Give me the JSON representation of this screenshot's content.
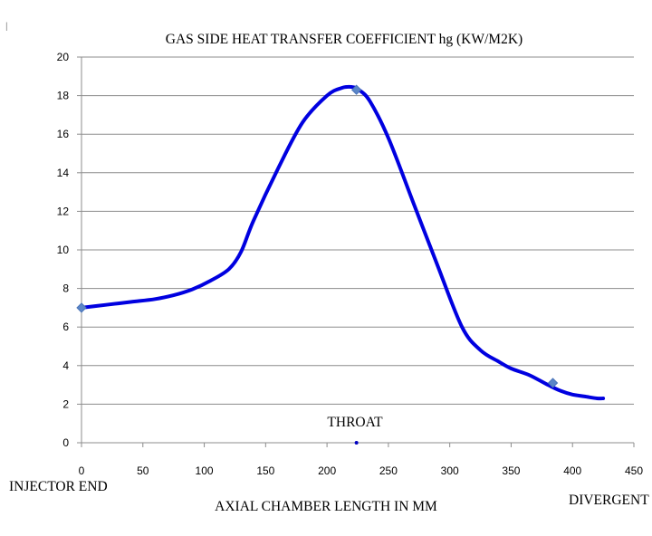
{
  "chart_data": {
    "type": "line",
    "title": "GAS SIDE HEAT TRANSFER COEFFICIENT hg (KW/M2K)",
    "xlabel": "AXIAL CHAMBER LENGTH IN MM",
    "ylabel": "",
    "xlim": [
      0,
      450
    ],
    "ylim": [
      0,
      20
    ],
    "x_ticks": [
      "0",
      "50",
      "100",
      "150",
      "200",
      "250",
      "300",
      "350",
      "400",
      "450"
    ],
    "y_ticks": [
      "0",
      "2",
      "4",
      "6",
      "8",
      "10",
      "12",
      "14",
      "16",
      "18",
      "20"
    ],
    "grid": "horizontal",
    "legend": "none",
    "series": [
      {
        "color": "#0000e0",
        "x": [
          0,
          20,
          40,
          60,
          75,
          90,
          105,
          120,
          130,
          140,
          160,
          180,
          200,
          212,
          220,
          226,
          235,
          250,
          270,
          290,
          310,
          325,
          340,
          350,
          365,
          380,
          390,
          400,
          410,
          420,
          425
        ],
        "y": [
          7.0,
          7.15,
          7.3,
          7.45,
          7.65,
          7.95,
          8.4,
          9.0,
          9.9,
          11.5,
          14.2,
          16.6,
          18.0,
          18.4,
          18.45,
          18.3,
          17.7,
          15.8,
          12.5,
          9.2,
          6.0,
          4.8,
          4.2,
          3.85,
          3.5,
          3.0,
          2.7,
          2.5,
          2.4,
          2.3,
          2.3
        ],
        "markers": [
          {
            "x": 0,
            "y": 7.0
          },
          {
            "x": 224,
            "y": 18.3
          },
          {
            "x": 384,
            "y": 3.1
          }
        ]
      }
    ],
    "annotations": [
      {
        "text": "THROAT",
        "x": 224,
        "y": 0
      },
      {
        "text": "INJECTOR END"
      },
      {
        "text": "DIVERGENT END"
      },
      {
        "text": "|"
      }
    ]
  }
}
